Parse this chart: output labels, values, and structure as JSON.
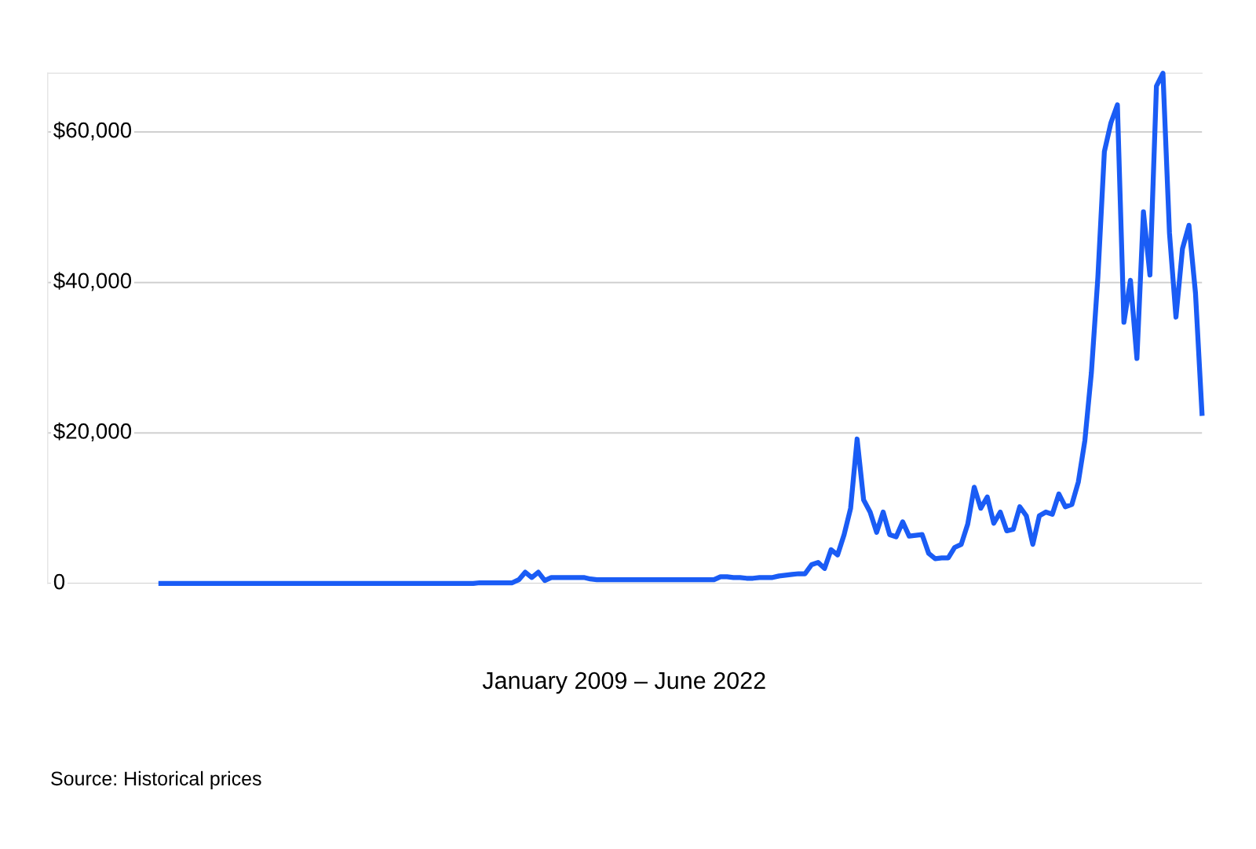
{
  "chart_data": {
    "type": "line",
    "annotations": [
      "January 2009 – June 2022",
      "Source: Historical prices"
    ],
    "categories": [
      null,
      null,
      null,
      null,
      null,
      null,
      null,
      null,
      null,
      null,
      null,
      null,
      null,
      null,
      null,
      null,
      null,
      null,
      null,
      null,
      null,
      null,
      null,
      null,
      null,
      null,
      null,
      null,
      null,
      null,
      null,
      null,
      null,
      null,
      null,
      null,
      null,
      null,
      null,
      null,
      null,
      null,
      null,
      null,
      null,
      null,
      null,
      null,
      null,
      null,
      null,
      null,
      null,
      null,
      null,
      null,
      null,
      null,
      null,
      null,
      null,
      null,
      null,
      null,
      null,
      null,
      null,
      null,
      null,
      null,
      null,
      null,
      null,
      null,
      null,
      null,
      null,
      null,
      null,
      null,
      null,
      null,
      null,
      null,
      null,
      null,
      null,
      null,
      null,
      null,
      null,
      null,
      null,
      null,
      null,
      null,
      null,
      null,
      null,
      null,
      null,
      null,
      null,
      null,
      null,
      null,
      null,
      null,
      null,
      null,
      null,
      null,
      null,
      null,
      null,
      null,
      null,
      null,
      null,
      null,
      null,
      null,
      null,
      null,
      null,
      null,
      null,
      null,
      null,
      null,
      null,
      null,
      null,
      null,
      null,
      null,
      null,
      null,
      null,
      null,
      null,
      null,
      null,
      null,
      null,
      null,
      null,
      null,
      null,
      null,
      null,
      null,
      null,
      null,
      null,
      null,
      null,
      null,
      null,
      null,
      null
    ],
    "series": [
      {
        "color": "#1a5cf5",
        "values": [
          0,
          0,
          0,
          0,
          0,
          0,
          0,
          0,
          0,
          0,
          0,
          0,
          0,
          0,
          0,
          0,
          0,
          0,
          0,
          0,
          0,
          0,
          0,
          0,
          0,
          0,
          0,
          0,
          0,
          0,
          0,
          0,
          0,
          0,
          0,
          0,
          0,
          0,
          0,
          0,
          0,
          0,
          0,
          0,
          0,
          0,
          0,
          0,
          0,
          100,
          100,
          100,
          100,
          100,
          100,
          500,
          1500,
          800,
          1500,
          400,
          800,
          800,
          800,
          800,
          800,
          800,
          600,
          500,
          500,
          500,
          500,
          500,
          500,
          500,
          500,
          500,
          500,
          500,
          500,
          500,
          500,
          500,
          500,
          500,
          500,
          500,
          900,
          900,
          800,
          800,
          700,
          700,
          800,
          800,
          800,
          1000,
          1100,
          1200,
          1300,
          1300,
          2500,
          2800,
          2000,
          4500,
          3800,
          6500,
          10000,
          19200,
          11100,
          9500,
          6800,
          9500,
          6500,
          6200,
          8200,
          6300,
          6400,
          6500,
          4000,
          3300,
          3400,
          3400,
          4800,
          5200,
          7900,
          12800,
          10000,
          11500,
          8000,
          9500,
          7000,
          7200,
          10200,
          9000,
          5200,
          9000,
          9500,
          9200,
          11900,
          10200,
          10500,
          13500,
          19000,
          28000,
          40700,
          57400,
          61200,
          63600,
          34700,
          40300,
          29900,
          49400,
          41000,
          66100,
          67800,
          46600,
          35400,
          44500,
          47600,
          38600,
          22600
        ]
      }
    ],
    "ylim": [
      0,
      67800
    ],
    "yticks": [
      0,
      {
        "value": 20000,
        "label": "$20,000"
      },
      {
        "value": 40000,
        "label": "$40,000"
      },
      {
        "value": 60000,
        "label": "$60,000"
      }
    ],
    "tick_labels": "y",
    "grid": "y",
    "marker": "none",
    "line_style": "solid"
  }
}
